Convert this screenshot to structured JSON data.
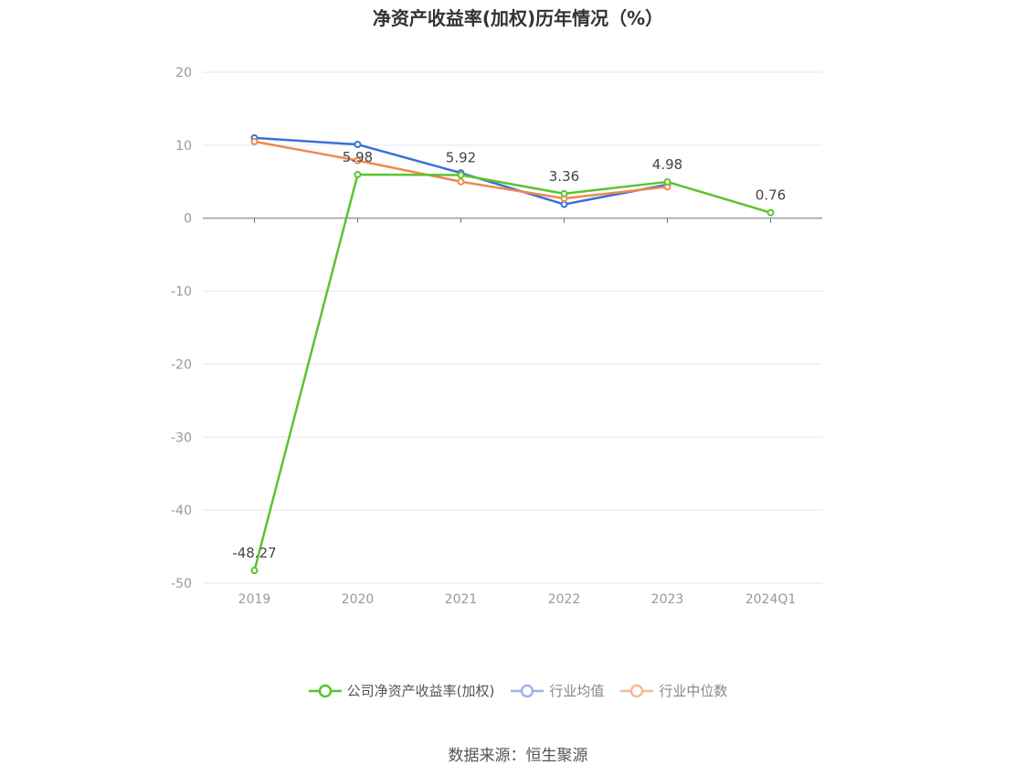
{
  "chart_data": {
    "type": "line",
    "title": "净资产收益率(加权)历年情况（%）",
    "categories": [
      "2019",
      "2020",
      "2021",
      "2022",
      "2023",
      "2024Q1"
    ],
    "ylim": [
      -50,
      20
    ],
    "yticks": [
      "20",
      "10",
      "0",
      "-10",
      "-20",
      "-30",
      "-40",
      "-50"
    ],
    "grid": true,
    "legend_position": "bottom",
    "series": [
      {
        "name": "公司净资产收益率(加权)",
        "color": "#5ac42e",
        "values": [
          -48.27,
          5.98,
          5.92,
          3.36,
          4.98,
          0.76
        ],
        "labels": [
          "-48.27",
          "5.98",
          "5.92",
          "3.36",
          "4.98",
          "0.76"
        ]
      },
      {
        "name": "行业均值",
        "color": "#3a6fd9",
        "values": [
          11.0,
          10.1,
          6.2,
          1.9,
          4.6,
          null
        ]
      },
      {
        "name": "行业中位数",
        "color": "#f0884f",
        "values": [
          10.5,
          7.9,
          5.0,
          2.7,
          4.3,
          null
        ]
      }
    ]
  },
  "source_text": "数据来源：恒生聚源"
}
